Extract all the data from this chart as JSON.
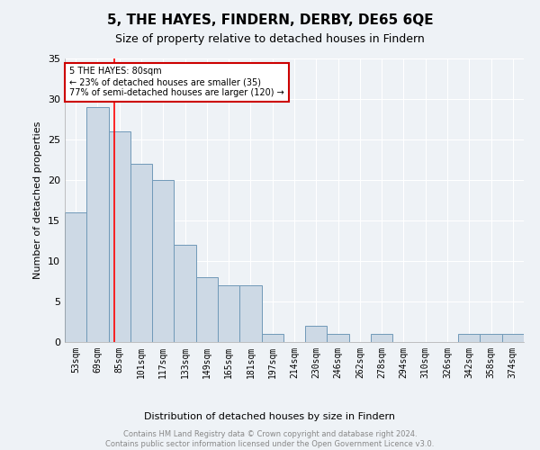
{
  "title": "5, THE HAYES, FINDERN, DERBY, DE65 6QE",
  "subtitle": "Size of property relative to detached houses in Findern",
  "xlabel": "Distribution of detached houses by size in Findern",
  "ylabel": "Number of detached properties",
  "footer_line1": "Contains HM Land Registry data © Crown copyright and database right 2024.",
  "footer_line2": "Contains public sector information licensed under the Open Government Licence v3.0.",
  "categories": [
    "53sqm",
    "69sqm",
    "85sqm",
    "101sqm",
    "117sqm",
    "133sqm",
    "149sqm",
    "165sqm",
    "181sqm",
    "197sqm",
    "214sqm",
    "230sqm",
    "246sqm",
    "262sqm",
    "278sqm",
    "294sqm",
    "310sqm",
    "326sqm",
    "342sqm",
    "358sqm",
    "374sqm"
  ],
  "values": [
    16,
    29,
    26,
    22,
    20,
    12,
    8,
    7,
    7,
    1,
    0,
    2,
    1,
    0,
    1,
    0,
    0,
    0,
    1,
    1,
    1
  ],
  "bar_color": "#cdd9e5",
  "bar_edge_color": "#7099b8",
  "redline_x": 1.75,
  "annotation_text": "5 THE HAYES: 80sqm\n← 23% of detached houses are smaller (35)\n77% of semi-detached houses are larger (120) →",
  "annotation_box_edge": "#cc0000",
  "ylim": [
    0,
    35
  ],
  "yticks": [
    0,
    5,
    10,
    15,
    20,
    25,
    30,
    35
  ],
  "background_color": "#eef2f6",
  "plot_background": "#eef2f6",
  "grid_color": "#ffffff",
  "title_fontsize": 11,
  "subtitle_fontsize": 9,
  "tick_fontsize": 7,
  "ylabel_fontsize": 8,
  "xlabel_fontsize": 8,
  "footer_fontsize": 6,
  "annot_fontsize": 7
}
